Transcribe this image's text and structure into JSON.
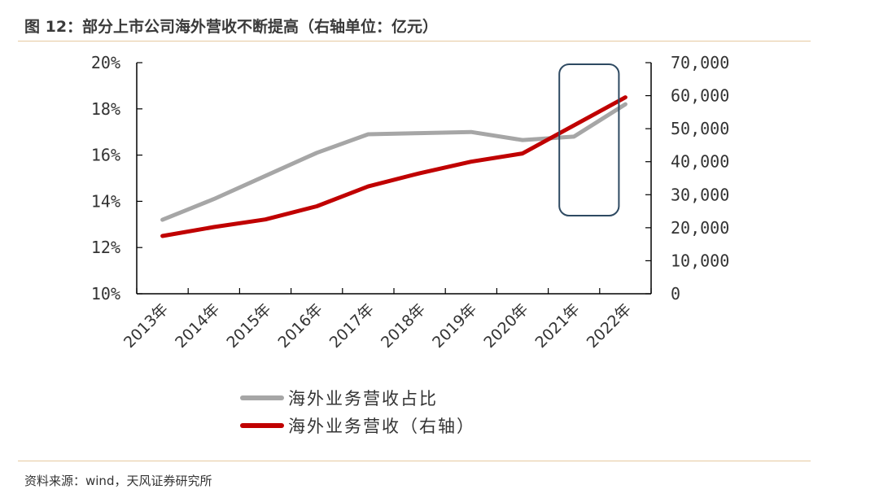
{
  "header": {
    "title": "图 12：部分上市公司海外营收不断提高（右轴单位：亿元）"
  },
  "footer": {
    "source": "资料来源：wind，天风证券研究所"
  },
  "chart_data": {
    "type": "line",
    "categories": [
      "2013年",
      "2014年",
      "2015年",
      "2016年",
      "2017年",
      "2018年",
      "2019年",
      "2020年",
      "2021年",
      "2022年"
    ],
    "series": [
      {
        "name": "海外业务营收占比",
        "axis": "left",
        "color": "#a6a6a6",
        "values": [
          0.132,
          0.141,
          0.151,
          0.161,
          0.169,
          0.1695,
          0.17,
          0.1665,
          0.168,
          0.182
        ]
      },
      {
        "name": "海外业务营收（右轴）",
        "axis": "right",
        "color": "#c00000",
        "values": [
          17500,
          20200,
          22500,
          26500,
          32500,
          36500,
          40000,
          42500,
          51000,
          59500
        ]
      }
    ],
    "left_axis": {
      "min": 0.1,
      "max": 0.2,
      "ticks": [
        "20%",
        "18%",
        "16%",
        "14%",
        "12%",
        "10%"
      ]
    },
    "right_axis": {
      "min": 0,
      "max": 70000,
      "ticks": [
        "70,000",
        "60,000",
        "50,000",
        "40,000",
        "30,000",
        "20,000",
        "10,000",
        "0"
      ]
    },
    "legend_position": "bottom",
    "grid": false,
    "annotation": {
      "type": "rounded-rectangle",
      "highlight": "2021年–2022年",
      "color": "#2e4a62"
    }
  }
}
